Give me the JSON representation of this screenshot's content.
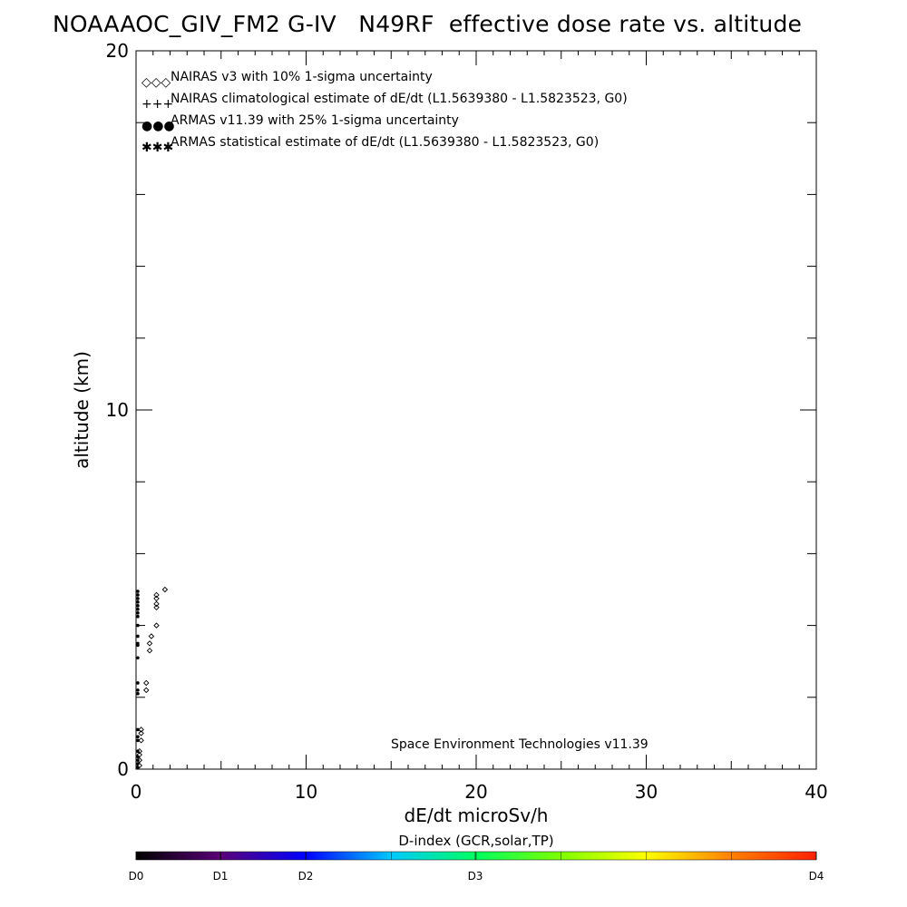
{
  "chart_data": {
    "type": "scatter",
    "title": "NOAAAOC_GIV_FM2 G-IV   N49RF  effective dose rate vs. altitude",
    "xlabel": "dE/dt microSv/h",
    "ylabel": "altitude (km)",
    "xlim": [
      0,
      40
    ],
    "ylim": [
      0,
      20
    ],
    "x_ticks": [
      "0",
      "10",
      "20",
      "30",
      "40"
    ],
    "y_ticks": [
      "0",
      "10",
      "20"
    ],
    "legend_placement": "top-left",
    "legend": [
      {
        "symbol": "diamond",
        "color": "#000000",
        "glyph": "◇◇◇",
        "label": "NAIRAS v3 with 10% 1-sigma uncertainty"
      },
      {
        "symbol": "plus",
        "color": "#000000",
        "glyph": "+++",
        "label": "NAIRAS climatological estimate of dE/dt (L1.5639380 - L1.5823523, G0)"
      },
      {
        "symbol": "dot",
        "color": "#1f3fcf",
        "glyph": "●●●",
        "label": "ARMAS v11.39 with 25% 1-sigma uncertainty"
      },
      {
        "symbol": "star",
        "color": "#000000",
        "glyph": "✱✱✱",
        "label": "ARMAS statistical estimate of dE/dt (L1.5639380 - L1.5823523, G0)"
      }
    ],
    "series": [
      {
        "name": "NAIRAS v3 with 10% 1-sigma uncertainty",
        "symbol": "diamond",
        "points": [
          [
            1.7,
            5.0
          ],
          [
            1.2,
            4.85
          ],
          [
            1.2,
            4.75
          ],
          [
            1.2,
            4.6
          ],
          [
            1.2,
            4.5
          ],
          [
            1.2,
            4.0
          ],
          [
            0.9,
            3.7
          ],
          [
            0.8,
            3.5
          ],
          [
            0.8,
            3.3
          ],
          [
            0.6,
            2.4
          ],
          [
            0.6,
            2.2
          ],
          [
            0.3,
            1.1
          ],
          [
            0.3,
            1.0
          ],
          [
            0.3,
            0.8
          ],
          [
            0.2,
            0.5
          ],
          [
            0.2,
            0.4
          ],
          [
            0.2,
            0.25
          ],
          [
            0.2,
            0.1
          ]
        ]
      },
      {
        "name": "ARMAS v11.39 with 25% 1-sigma uncertainty",
        "symbol": "dot",
        "points": [
          [
            0.05,
            4.95
          ],
          [
            0.05,
            4.85
          ],
          [
            0.05,
            4.75
          ],
          [
            0.05,
            4.65
          ],
          [
            0.05,
            4.55
          ],
          [
            0.05,
            4.45
          ],
          [
            0.05,
            4.35
          ],
          [
            0.05,
            4.25
          ],
          [
            0.05,
            4.0
          ],
          [
            0.05,
            3.7
          ],
          [
            0.05,
            3.5
          ],
          [
            0.05,
            3.45
          ],
          [
            0.05,
            3.1
          ],
          [
            0.05,
            2.4
          ],
          [
            0.05,
            2.2
          ],
          [
            0.05,
            2.1
          ],
          [
            0.05,
            1.1
          ],
          [
            0.05,
            0.9
          ],
          [
            0.05,
            0.8
          ],
          [
            0.05,
            0.5
          ],
          [
            0.05,
            0.35
          ],
          [
            0.05,
            0.25
          ],
          [
            0.05,
            0.15
          ],
          [
            0.05,
            0.05
          ]
        ]
      }
    ],
    "annotation": "Space Environment Technologies v11.39",
    "colorbar": {
      "title": "D-index (GCR,solar,TP)",
      "labels": [
        "D0",
        "D1",
        "D2",
        "D3",
        "D4"
      ],
      "colors": [
        "#000000",
        "#5a0078",
        "#0000ff",
        "#00c8ff",
        "#00ff60",
        "#7fff00",
        "#ffff00",
        "#ff8000",
        "#ff2000"
      ]
    }
  }
}
